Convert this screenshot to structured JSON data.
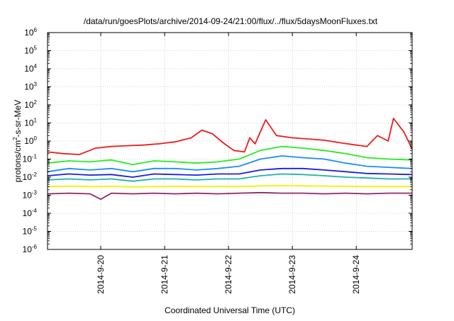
{
  "chart_data": {
    "type": "line",
    "title": "/data/run/goesPlots/archive/2014-09-24/21:00/flux/../flux/5daysMoonFluxes.txt",
    "xlabel": "Coordinated Universal Time (UTC)",
    "ylabel": {
      "prefix": "protons/cm",
      "superscript": "2",
      "suffix": "-s-sr-MeV"
    },
    "x_scale": "time",
    "x_range": [
      "2014-09-19T04:00",
      "2014-09-24T21:00"
    ],
    "x_ticks": [
      {
        "date": "2014-09-20T00:00",
        "label": "2014-9-20"
      },
      {
        "date": "2014-09-21T00:00",
        "label": "2014-9-21"
      },
      {
        "date": "2014-09-22T00:00",
        "label": "2014-9-22"
      },
      {
        "date": "2014-09-23T00:00",
        "label": "2014-9-23"
      },
      {
        "date": "2014-09-24T00:00",
        "label": "2014-9-24"
      }
    ],
    "y_scale": "log",
    "ylim": [
      1e-06,
      1000000.0
    ],
    "y_ticks": [
      {
        "value": 1e-06,
        "base": "10",
        "exp": "-6"
      },
      {
        "value": 1e-05,
        "base": "10",
        "exp": "-5"
      },
      {
        "value": 0.0001,
        "base": "10",
        "exp": "-4"
      },
      {
        "value": 0.001,
        "base": "10",
        "exp": "-3"
      },
      {
        "value": 0.01,
        "base": "10",
        "exp": "-2"
      },
      {
        "value": 0.1,
        "base": "10",
        "exp": "-1"
      },
      {
        "value": 1,
        "base": "10",
        "exp": "0"
      },
      {
        "value": 10.0,
        "base": "10",
        "exp": "1"
      },
      {
        "value": 100.0,
        "base": "10",
        "exp": "2"
      },
      {
        "value": 1000.0,
        "base": "10",
        "exp": "3"
      },
      {
        "value": 10000.0,
        "base": "10",
        "exp": "4"
      },
      {
        "value": 100000.0,
        "base": "10",
        "exp": "5"
      },
      {
        "value": 1000000.0,
        "base": "10",
        "exp": "6"
      }
    ],
    "grid": true,
    "series": [
      {
        "color": "#ee1c1c",
        "x": [
          "2014-09-19T04:00",
          "2014-09-19T10:00",
          "2014-09-19T16:00",
          "2014-09-19T22:00",
          "2014-09-20T04:00",
          "2014-09-20T10:00",
          "2014-09-20T16:00",
          "2014-09-20T22:00",
          "2014-09-21T04:00",
          "2014-09-21T10:00",
          "2014-09-21T14:00",
          "2014-09-21T18:00",
          "2014-09-21T22:00",
          "2014-09-22T02:00",
          "2014-09-22T06:00",
          "2014-09-22T08:00",
          "2014-09-22T10:00",
          "2014-09-22T14:00",
          "2014-09-22T18:00",
          "2014-09-23T00:00",
          "2014-09-23T06:00",
          "2014-09-23T12:00",
          "2014-09-23T18:00",
          "2014-09-24T00:00",
          "2014-09-24T04:00",
          "2014-09-24T08:00",
          "2014-09-24T12:00",
          "2014-09-24T14:00",
          "2014-09-24T18:00",
          "2014-09-24T21:00"
        ],
        "values": [
          0.25,
          0.2,
          0.18,
          0.4,
          0.5,
          0.55,
          0.6,
          0.7,
          0.9,
          1.5,
          4.0,
          2.5,
          0.8,
          0.3,
          0.25,
          1.5,
          0.7,
          15.0,
          2.0,
          1.5,
          1.3,
          1.1,
          0.8,
          0.6,
          0.5,
          2.0,
          1.0,
          18.0,
          3.0,
          0.35
        ]
      },
      {
        "color": "#22ee22",
        "x": [
          "2014-09-19T04:00",
          "2014-09-19T12:00",
          "2014-09-19T20:00",
          "2014-09-20T04:00",
          "2014-09-20T12:00",
          "2014-09-20T20:00",
          "2014-09-21T04:00",
          "2014-09-21T12:00",
          "2014-09-21T20:00",
          "2014-09-22T04:00",
          "2014-09-22T12:00",
          "2014-09-22T20:00",
          "2014-09-23T04:00",
          "2014-09-23T12:00",
          "2014-09-23T20:00",
          "2014-09-24T04:00",
          "2014-09-24T12:00",
          "2014-09-24T21:00"
        ],
        "values": [
          0.06,
          0.08,
          0.07,
          0.09,
          0.05,
          0.08,
          0.07,
          0.06,
          0.07,
          0.1,
          0.3,
          0.5,
          0.4,
          0.3,
          0.2,
          0.12,
          0.1,
          0.09
        ]
      },
      {
        "color": "#1a8cff",
        "x": [
          "2014-09-19T04:00",
          "2014-09-19T12:00",
          "2014-09-19T20:00",
          "2014-09-20T04:00",
          "2014-09-20T12:00",
          "2014-09-20T20:00",
          "2014-09-21T04:00",
          "2014-09-21T12:00",
          "2014-09-21T20:00",
          "2014-09-22T04:00",
          "2014-09-22T12:00",
          "2014-09-22T20:00",
          "2014-09-23T04:00",
          "2014-09-23T12:00",
          "2014-09-23T20:00",
          "2014-09-24T04:00",
          "2014-09-24T12:00",
          "2014-09-24T21:00"
        ],
        "values": [
          0.02,
          0.03,
          0.025,
          0.03,
          0.02,
          0.03,
          0.03,
          0.025,
          0.03,
          0.04,
          0.1,
          0.15,
          0.12,
          0.1,
          0.06,
          0.04,
          0.035,
          0.03
        ]
      },
      {
        "color": "#1c1ce0",
        "x": [
          "2014-09-19T04:00",
          "2014-09-19T12:00",
          "2014-09-19T20:00",
          "2014-09-20T04:00",
          "2014-09-20T12:00",
          "2014-09-20T20:00",
          "2014-09-21T04:00",
          "2014-09-21T12:00",
          "2014-09-21T20:00",
          "2014-09-22T04:00",
          "2014-09-22T12:00",
          "2014-09-22T20:00",
          "2014-09-23T04:00",
          "2014-09-23T12:00",
          "2014-09-23T20:00",
          "2014-09-24T04:00",
          "2014-09-24T12:00",
          "2014-09-24T21:00"
        ],
        "values": [
          0.012,
          0.015,
          0.013,
          0.014,
          0.01,
          0.015,
          0.014,
          0.013,
          0.015,
          0.015,
          0.025,
          0.03,
          0.03,
          0.025,
          0.02,
          0.016,
          0.015,
          0.014
        ]
      },
      {
        "color": "#20b2aa",
        "x": [
          "2014-09-19T04:00",
          "2014-09-19T12:00",
          "2014-09-19T20:00",
          "2014-09-20T04:00",
          "2014-09-20T12:00",
          "2014-09-20T20:00",
          "2014-09-21T04:00",
          "2014-09-21T12:00",
          "2014-09-21T20:00",
          "2014-09-22T04:00",
          "2014-09-22T12:00",
          "2014-09-22T20:00",
          "2014-09-23T04:00",
          "2014-09-23T12:00",
          "2014-09-23T20:00",
          "2014-09-24T04:00",
          "2014-09-24T12:00",
          "2014-09-24T21:00"
        ],
        "values": [
          0.007,
          0.008,
          0.007,
          0.008,
          0.006,
          0.008,
          0.008,
          0.007,
          0.008,
          0.008,
          0.012,
          0.015,
          0.014,
          0.012,
          0.01,
          0.009,
          0.008,
          0.008
        ]
      },
      {
        "color": "#f2f200",
        "x": [
          "2014-09-19T04:00",
          "2014-09-19T12:00",
          "2014-09-19T20:00",
          "2014-09-20T04:00",
          "2014-09-20T12:00",
          "2014-09-20T20:00",
          "2014-09-21T04:00",
          "2014-09-21T12:00",
          "2014-09-21T20:00",
          "2014-09-22T04:00",
          "2014-09-22T12:00",
          "2014-09-22T20:00",
          "2014-09-23T04:00",
          "2014-09-23T12:00",
          "2014-09-23T20:00",
          "2014-09-24T04:00",
          "2014-09-24T12:00",
          "2014-09-24T21:00"
        ],
        "values": [
          0.003,
          0.0032,
          0.003,
          0.0031,
          0.0029,
          0.003,
          0.0031,
          0.003,
          0.0031,
          0.003,
          0.0033,
          0.0034,
          0.0033,
          0.0032,
          0.0031,
          0.003,
          0.003,
          0.003
        ]
      },
      {
        "color": "#8b2a6a",
        "x": [
          "2014-09-19T04:00",
          "2014-09-19T12:00",
          "2014-09-19T20:00",
          "2014-09-20T00:00",
          "2014-09-20T04:00",
          "2014-09-20T12:00",
          "2014-09-20T20:00",
          "2014-09-21T04:00",
          "2014-09-21T12:00",
          "2014-09-21T20:00",
          "2014-09-22T04:00",
          "2014-09-22T12:00",
          "2014-09-22T20:00",
          "2014-09-23T04:00",
          "2014-09-23T12:00",
          "2014-09-23T20:00",
          "2014-09-24T04:00",
          "2014-09-24T12:00",
          "2014-09-24T21:00"
        ],
        "values": [
          0.0012,
          0.0013,
          0.0012,
          0.0006,
          0.0013,
          0.0012,
          0.0013,
          0.0012,
          0.0013,
          0.0012,
          0.0013,
          0.0014,
          0.0013,
          0.0013,
          0.0012,
          0.0013,
          0.0012,
          0.0013,
          0.0013
        ]
      }
    ]
  }
}
